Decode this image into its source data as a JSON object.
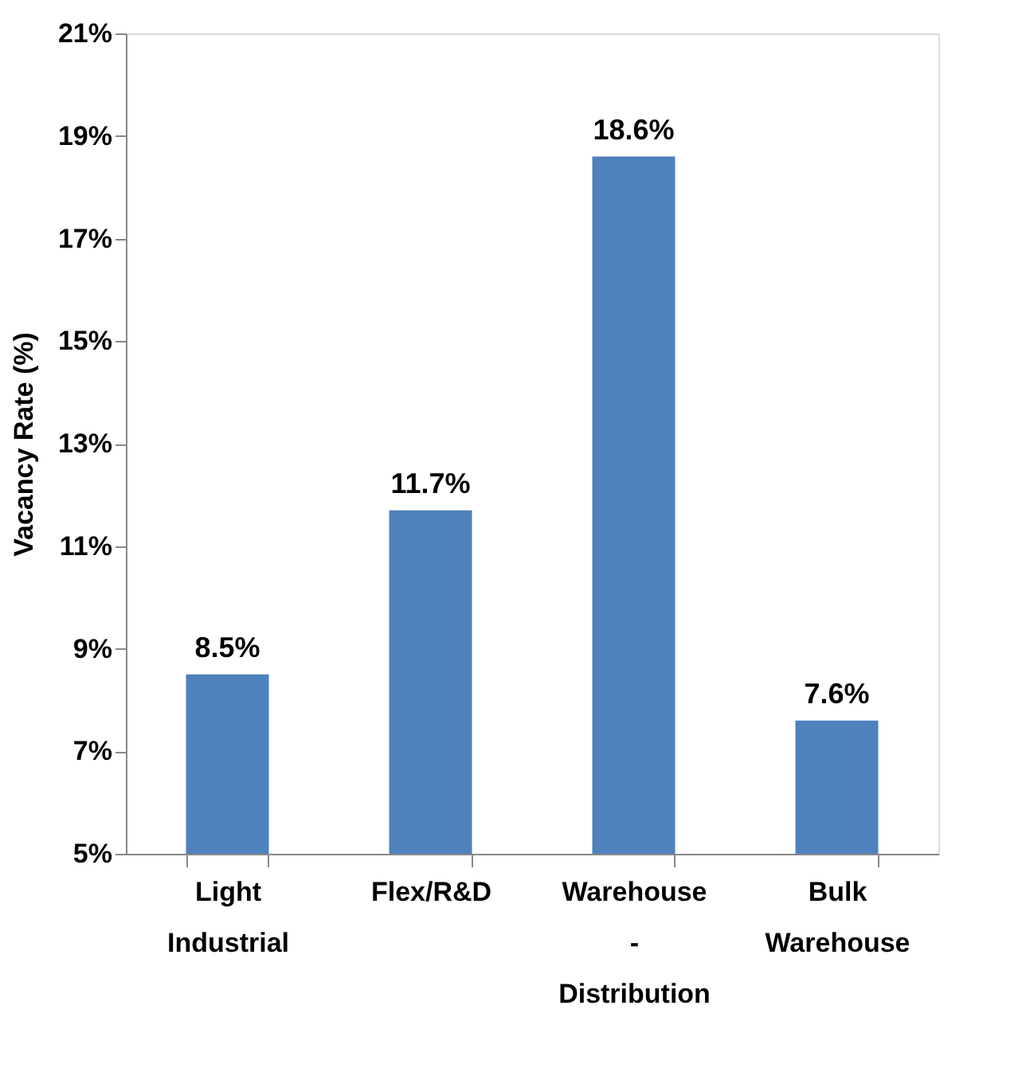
{
  "chart_data": {
    "type": "bar",
    "ylabel": "Vacancy Rate (%)",
    "categories": [
      "Light Industrial",
      "Flex/R&D",
      "Warehouse - Distribution",
      "Bulk Warehouse"
    ],
    "values": [
      8.5,
      11.7,
      18.6,
      7.6
    ],
    "value_labels": [
      "8.5%",
      "11.7%",
      "18.6%",
      "7.6%"
    ],
    "color": "#4f81bd",
    "ylim": [
      5,
      21
    ],
    "yticks": [
      {
        "value": 5,
        "label": "5%"
      },
      {
        "value": 7,
        "label": "7%"
      },
      {
        "value": 9,
        "label": "9%"
      },
      {
        "value": 11,
        "label": "11%"
      },
      {
        "value": 13,
        "label": "13%"
      },
      {
        "value": 15,
        "label": "15%"
      },
      {
        "value": 17,
        "label": "17%"
      },
      {
        "value": 19,
        "label": "19%"
      },
      {
        "value": 21,
        "label": "21%"
      }
    ],
    "grid": false
  }
}
